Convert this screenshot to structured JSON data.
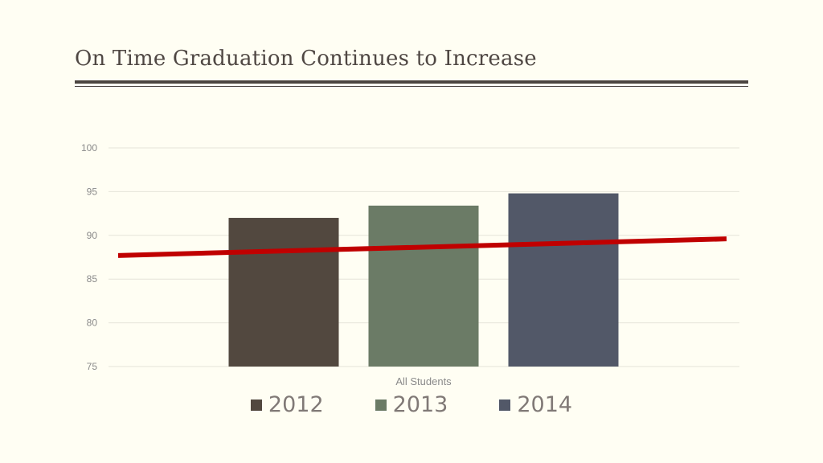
{
  "slide": {
    "title": "On Time Graduation Continues to Increase"
  },
  "chart_data": {
    "type": "bar",
    "categories": [
      "All Students"
    ],
    "series": [
      {
        "name": "2012",
        "values": [
          92.0
        ],
        "color": "#52483f"
      },
      {
        "name": "2013",
        "values": [
          93.4
        ],
        "color": "#6b7b66"
      },
      {
        "name": "2014",
        "values": [
          94.8
        ],
        "color": "#525868"
      }
    ],
    "ylim": [
      75,
      100
    ],
    "yticks": [
      75,
      80,
      85,
      90,
      95,
      100
    ],
    "grid": true,
    "legend_position": "bottom",
    "trend_line": {
      "color": "#c00000",
      "start_value": 87.7,
      "end_value": 89.6
    },
    "title": "",
    "xlabel": "",
    "ylabel": ""
  }
}
